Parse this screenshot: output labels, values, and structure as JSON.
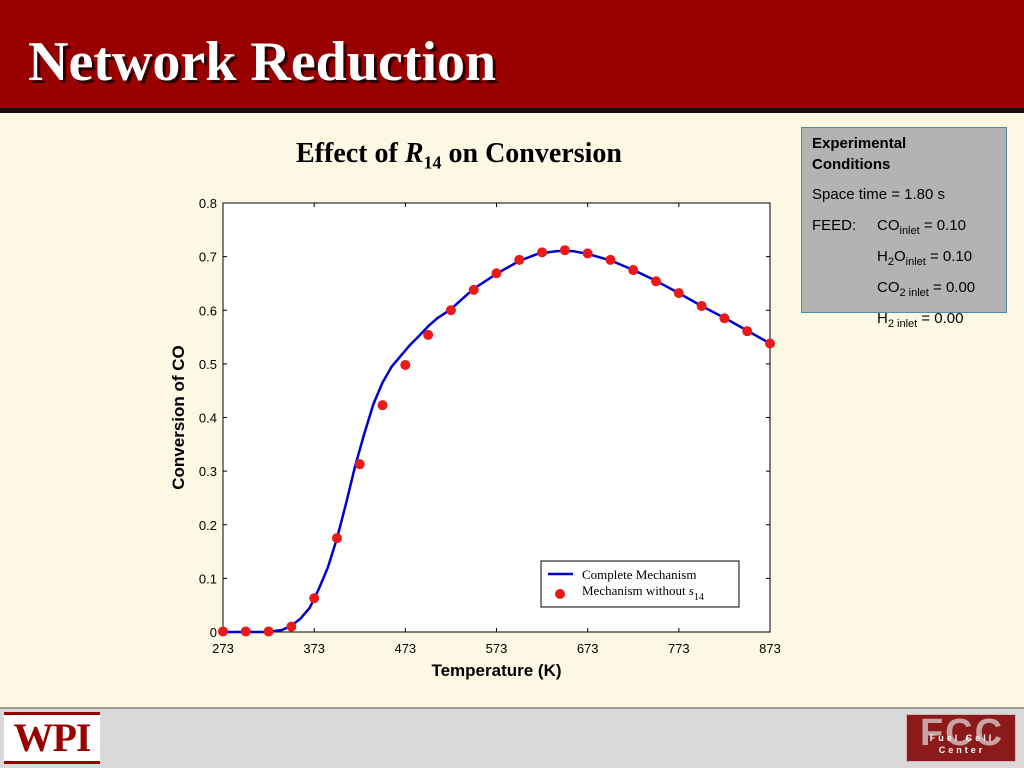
{
  "slide": {
    "title": "Network Reduction"
  },
  "chart_title": {
    "prefix": "Effect of ",
    "var": "R",
    "sub": "14",
    "suffix": " on Conversion"
  },
  "conditions": {
    "heading_line1": "Experimental",
    "heading_line2": "Conditions",
    "space_time": "Space time = 1.80 s",
    "feed_label": "FEED:",
    "co": {
      "base": "CO",
      "sub": "inlet",
      "value": " = 0.10"
    },
    "h2o": {
      "base1": "H",
      "sub1": "2",
      "base2": "O",
      "sub2": "inlet",
      "value": " = 0.10"
    },
    "co2": {
      "base": "CO",
      "sub": "2 inlet",
      "value": " = 0.00"
    },
    "h2": {
      "base": "H",
      "sub": "2 inlet",
      "value": " = 0.00"
    },
    "box_color": "#b3b3b3"
  },
  "footer": {
    "wpi_logo": "WPI",
    "fcc_logo": "FCC",
    "fcc_subtitle": "Fuel Cell Center"
  },
  "colors": {
    "header": "#990000",
    "background": "#fdf8e4",
    "curve": "#0000cc",
    "markers": "#e81a1a"
  },
  "chart_data": {
    "type": "line",
    "xlabel": "Temperature (K)",
    "ylabel": "Conversion of CO",
    "xlim": [
      273,
      873
    ],
    "ylim": [
      0,
      0.8
    ],
    "x_ticks": [
      273,
      373,
      473,
      573,
      673,
      773,
      873
    ],
    "y_ticks": [
      0,
      0.1,
      0.2,
      0.3,
      0.4,
      0.5,
      0.6,
      0.7,
      0.8
    ],
    "y_tick_labels": [
      "0",
      "0.1",
      "0.2",
      "0.3",
      "0.4",
      "0.5",
      "0.6",
      "0.7",
      "0.8"
    ],
    "grid": false,
    "legend_position": "bottom-right",
    "series": [
      {
        "name": "Complete Mechanism",
        "style": "line",
        "x": [
          273,
          298,
          323,
          338,
          348,
          358,
          368,
          373,
          378,
          388,
          398,
          408,
          418,
          428,
          438,
          448,
          458,
          468,
          473,
          478,
          488,
          498,
          508,
          523,
          538,
          548,
          573,
          598,
          618,
          638,
          648,
          658,
          673,
          698,
          723,
          748,
          773,
          798,
          823,
          848,
          873
        ],
        "y": [
          0.0,
          0.0,
          0.0,
          0.004,
          0.012,
          0.025,
          0.045,
          0.062,
          0.08,
          0.12,
          0.175,
          0.24,
          0.31,
          0.37,
          0.425,
          0.465,
          0.495,
          0.515,
          0.525,
          0.535,
          0.552,
          0.57,
          0.585,
          0.602,
          0.625,
          0.64,
          0.668,
          0.692,
          0.705,
          0.71,
          0.711,
          0.71,
          0.705,
          0.693,
          0.675,
          0.655,
          0.632,
          0.608,
          0.586,
          0.562,
          0.538
        ]
      },
      {
        "name": "Mechanism without s14",
        "legend_prefix": "Mechanism without ",
        "legend_var": "s",
        "legend_sub": "14",
        "style": "markers",
        "x": [
          273,
          298,
          323,
          348,
          373,
          398,
          423,
          448,
          473,
          498,
          523,
          548,
          573,
          598,
          623,
          648,
          673,
          698,
          723,
          748,
          773,
          798,
          823,
          848,
          873
        ],
        "y": [
          0.001,
          0.001,
          0.001,
          0.01,
          0.063,
          0.175,
          0.313,
          0.423,
          0.498,
          0.554,
          0.6,
          0.638,
          0.669,
          0.694,
          0.708,
          0.712,
          0.706,
          0.694,
          0.675,
          0.654,
          0.632,
          0.608,
          0.585,
          0.561,
          0.538
        ]
      }
    ]
  }
}
